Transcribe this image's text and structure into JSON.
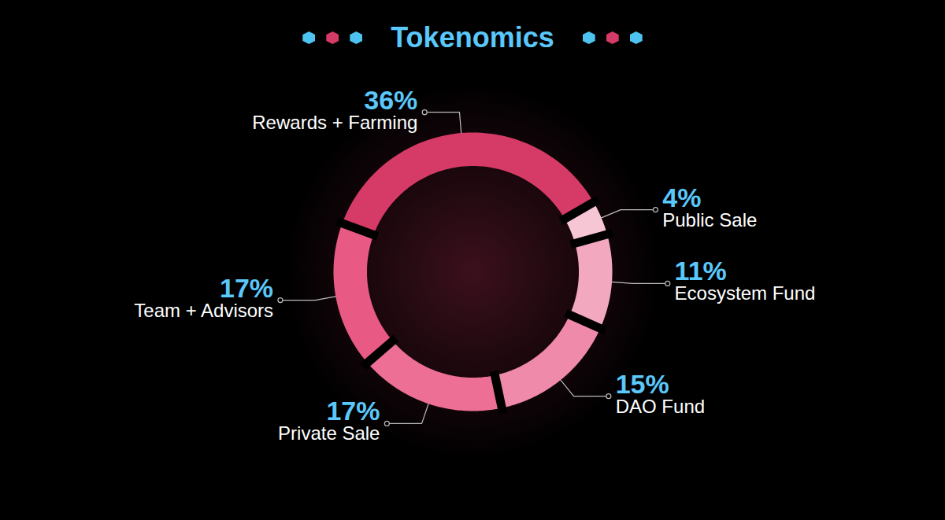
{
  "chart_data": {
    "type": "donut",
    "title": "Tokenomics",
    "categories": [
      "Public Sale",
      "Ecosystem Fund",
      "DAO Fund",
      "Private Sale",
      "Team + Advisors",
      "Rewards + Farming"
    ],
    "values": [
      4,
      11,
      15,
      17,
      17,
      36
    ],
    "value_labels": [
      "4%",
      "11%",
      "15%",
      "17%",
      "17%",
      "36%"
    ],
    "colors": [
      "#f7c6d4",
      "#f2a8bf",
      "#f08aaa",
      "#ee6f95",
      "#e85a84",
      "#d63a66"
    ],
    "data_labels": true
  }
}
